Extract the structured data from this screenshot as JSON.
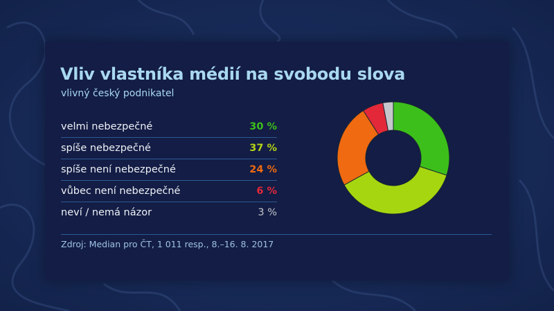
{
  "title": "Vliv vlastníka médií na svobodu slova",
  "subtitle": "vlivný český podnikatel",
  "rows": [
    {
      "label": "velmi nebezpečné",
      "value": "30 %",
      "color": "#3cbf1a"
    },
    {
      "label": "spíše nebezpečné",
      "value": "37 %",
      "color": "#b5d416"
    },
    {
      "label": "spíše není nebezpečné",
      "value": "24 %",
      "color": "#f06a10"
    },
    {
      "label": "vůbec není nebezpečné",
      "value": "6 %",
      "color": "#e3283a"
    },
    {
      "label": "neví / nemá názor",
      "value": "3 %",
      "color": "#c5c7cc"
    }
  ],
  "source": "Zdroj: Median pro ČT, 1 011 resp., 8.–16. 8. 2017",
  "chart_data": {
    "type": "pie",
    "subtype": "donut",
    "title": "Vliv vlastníka médií na svobodu slova",
    "subtitle": "vlivný český podnikatel",
    "categories": [
      "velmi nebezpečné",
      "spíše nebezpečné",
      "spíše není nebezpečné",
      "vůbec není nebezpečné",
      "neví / nemá názor"
    ],
    "values": [
      30,
      37,
      24,
      6,
      3
    ],
    "unit": "%",
    "colors": [
      "#3cbf1a",
      "#a6d610",
      "#ef6a10",
      "#e3283a",
      "#c5c7cc"
    ],
    "start_angle": "12 o'clock",
    "direction": "clockwise",
    "legend": "table on left with values",
    "source": "Zdroj: Median pro ČT, 1 011 resp., 8.–16. 8. 2017"
  }
}
